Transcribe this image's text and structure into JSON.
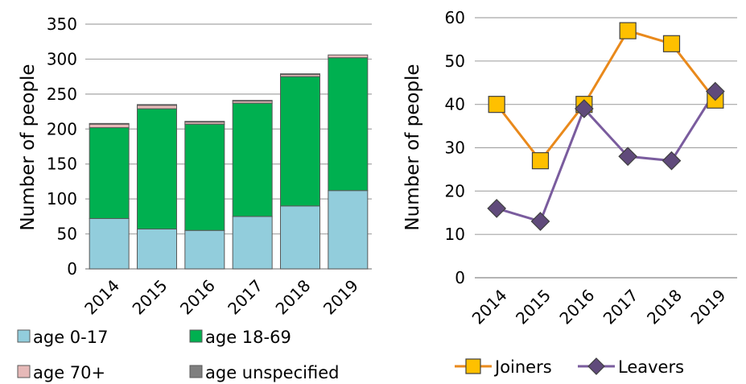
{
  "chart_data": [
    {
      "type": "bar",
      "stacked": true,
      "categories": [
        "2014",
        "2015",
        "2016",
        "2017",
        "2018",
        "2019"
      ],
      "series": [
        {
          "name": "age 0-17",
          "color": "#92cddc",
          "values": [
            72,
            57,
            55,
            75,
            90,
            112
          ]
        },
        {
          "name": "age 18-69",
          "color": "#00b050",
          "values": [
            130,
            172,
            152,
            162,
            185,
            190
          ]
        },
        {
          "name": "age 70+",
          "color": "#e6b9b8",
          "values": [
            5,
            5,
            3,
            3,
            3,
            4
          ]
        },
        {
          "name": "age unspecified",
          "color": "#7f7f7f",
          "values": [
            1,
            1,
            1,
            1,
            1,
            0
          ]
        }
      ],
      "title": "",
      "xlabel": "",
      "ylabel": "Number of people",
      "ylim": [
        0,
        350
      ],
      "yticks": [
        "0",
        "50",
        "100",
        "150",
        "200",
        "250",
        "300",
        "350"
      ],
      "grid": true,
      "legend": "bottom"
    },
    {
      "type": "line",
      "categories": [
        "2014",
        "2015",
        "2016",
        "2017",
        "2018",
        "2019"
      ],
      "series": [
        {
          "name": "Joiners",
          "color": "#e9891b",
          "marker": "square",
          "marker_fill": "#ffc000",
          "values": [
            40,
            27,
            40,
            57,
            54,
            41
          ]
        },
        {
          "name": "Leavers",
          "color": "#7a5c9e",
          "marker": "diamond",
          "marker_fill": "#604a7b",
          "values": [
            16,
            13,
            39,
            28,
            27,
            43
          ]
        }
      ],
      "title": "",
      "xlabel": "",
      "ylabel": "Number of people",
      "ylim": [
        0,
        60
      ],
      "yticks": [
        "0",
        "10",
        "20",
        "30",
        "40",
        "50",
        "60"
      ],
      "grid": true,
      "legend": "bottom"
    }
  ]
}
